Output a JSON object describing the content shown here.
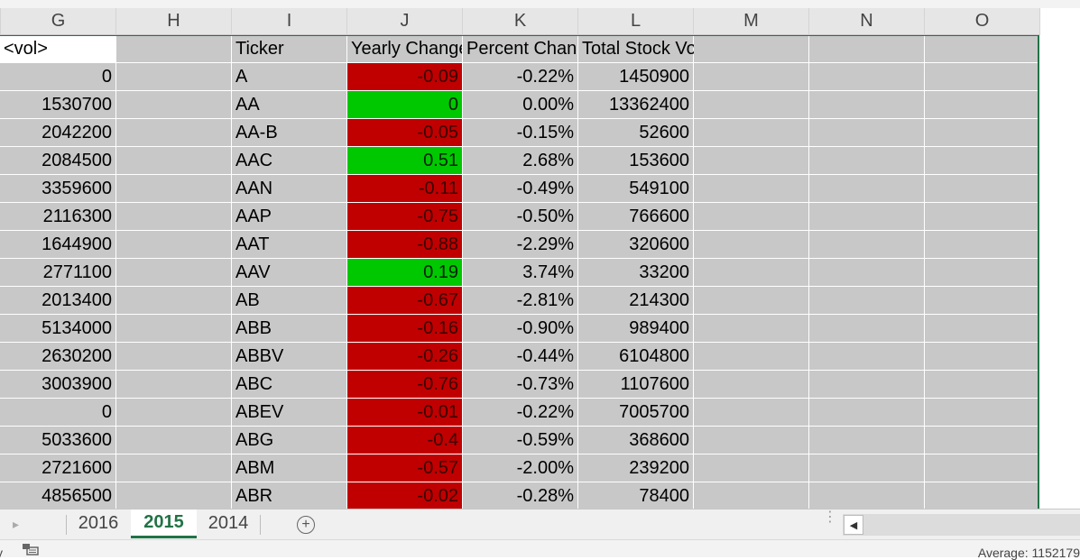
{
  "columns": [
    "G",
    "H",
    "I",
    "J",
    "K",
    "L",
    "M",
    "N",
    "O"
  ],
  "header_row": {
    "g": "<vol>",
    "h": "",
    "i": "Ticker",
    "j": "Yearly Change",
    "k": "Percent Change",
    "l": "Total Stock Volume"
  },
  "rows": [
    {
      "vol": "0",
      "ticker": "A",
      "change": "-0.09",
      "pct": "-0.22%",
      "total": "1450900",
      "cls": "neg"
    },
    {
      "vol": "1530700",
      "ticker": "AA",
      "change": "0",
      "pct": "0.00%",
      "total": "13362400",
      "cls": "pos"
    },
    {
      "vol": "2042200",
      "ticker": "AA-B",
      "change": "-0.05",
      "pct": "-0.15%",
      "total": "52600",
      "cls": "neg"
    },
    {
      "vol": "2084500",
      "ticker": "AAC",
      "change": "0.51",
      "pct": "2.68%",
      "total": "153600",
      "cls": "pos"
    },
    {
      "vol": "3359600",
      "ticker": "AAN",
      "change": "-0.11",
      "pct": "-0.49%",
      "total": "549100",
      "cls": "neg"
    },
    {
      "vol": "2116300",
      "ticker": "AAP",
      "change": "-0.75",
      "pct": "-0.50%",
      "total": "766600",
      "cls": "neg"
    },
    {
      "vol": "1644900",
      "ticker": "AAT",
      "change": "-0.88",
      "pct": "-2.29%",
      "total": "320600",
      "cls": "neg"
    },
    {
      "vol": "2771100",
      "ticker": "AAV",
      "change": "0.19",
      "pct": "3.74%",
      "total": "33200",
      "cls": "pos"
    },
    {
      "vol": "2013400",
      "ticker": "AB",
      "change": "-0.67",
      "pct": "-2.81%",
      "total": "214300",
      "cls": "neg"
    },
    {
      "vol": "5134000",
      "ticker": "ABB",
      "change": "-0.16",
      "pct": "-0.90%",
      "total": "989400",
      "cls": "neg"
    },
    {
      "vol": "2630200",
      "ticker": "ABBV",
      "change": "-0.26",
      "pct": "-0.44%",
      "total": "6104800",
      "cls": "neg"
    },
    {
      "vol": "3003900",
      "ticker": "ABC",
      "change": "-0.76",
      "pct": "-0.73%",
      "total": "1107600",
      "cls": "neg"
    },
    {
      "vol": "0",
      "ticker": "ABEV",
      "change": "-0.01",
      "pct": "-0.22%",
      "total": "7005700",
      "cls": "neg"
    },
    {
      "vol": "5033600",
      "ticker": "ABG",
      "change": "-0.4",
      "pct": "-0.59%",
      "total": "368600",
      "cls": "neg"
    },
    {
      "vol": "2721600",
      "ticker": "ABM",
      "change": "-0.57",
      "pct": "-2.00%",
      "total": "239200",
      "cls": "neg"
    },
    {
      "vol": "4856500",
      "ticker": "ABR",
      "change": "-0.02",
      "pct": "-0.28%",
      "total": "78400",
      "cls": "neg"
    }
  ],
  "sheet_tabs": [
    {
      "label": "2016",
      "active": false
    },
    {
      "label": "2015",
      "active": true
    },
    {
      "label": "2014",
      "active": false
    }
  ],
  "add_sheet_symbol": "+",
  "status": {
    "mode": "y",
    "average": "Average: 1152179"
  },
  "colors": {
    "negative": "#c00000",
    "positive": "#00c800",
    "accent": "#217346",
    "cell_fill": "#c8c8c8"
  }
}
